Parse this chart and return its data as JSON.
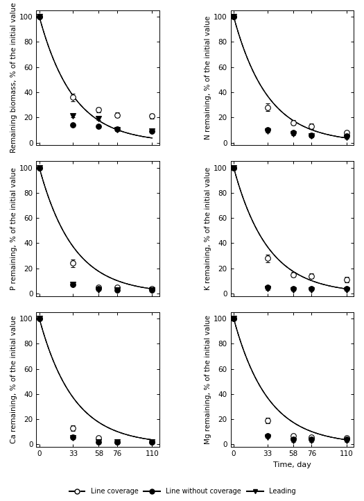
{
  "days": [
    0,
    33,
    58,
    76,
    110
  ],
  "subplots": [
    {
      "ylabel": "Remaining biomass, % of the initial value",
      "vprws": {
        "data": [
          100,
          36,
          26,
          22,
          21
        ],
        "err": [
          0,
          3,
          2,
          2,
          2
        ]
      },
      "vprs": {
        "data": [
          100,
          14,
          13,
          11,
          9
        ],
        "err": [
          0,
          1,
          1,
          1,
          1
        ]
      },
      "br": {
        "data": [
          100,
          21,
          19,
          10,
          9
        ],
        "err": [
          0,
          1,
          1,
          1,
          1
        ]
      }
    },
    {
      "ylabel": "N remaining, % of the initial value",
      "vprws": {
        "data": [
          100,
          28,
          16,
          13,
          8
        ],
        "err": [
          0,
          3,
          2,
          2,
          1
        ]
      },
      "vprs": {
        "data": [
          100,
          10,
          8,
          6,
          5
        ],
        "err": [
          0,
          1,
          1,
          1,
          1
        ]
      },
      "br": {
        "data": [
          100,
          9,
          7,
          5,
          4
        ],
        "err": [
          0,
          1,
          1,
          1,
          1
        ]
      }
    },
    {
      "ylabel": "P remaining, % of the initial value",
      "vprws": {
        "data": [
          100,
          24,
          5,
          5,
          4
        ],
        "err": [
          0,
          3,
          1,
          1,
          1
        ]
      },
      "vprs": {
        "data": [
          100,
          7,
          4,
          3,
          3
        ],
        "err": [
          0,
          1,
          1,
          1,
          1
        ]
      },
      "br": {
        "data": [
          100,
          7,
          3,
          3,
          3
        ],
        "err": [
          0,
          1,
          1,
          1,
          1
        ]
      }
    },
    {
      "ylabel": "K remaining, % of the initial value",
      "vprws": {
        "data": [
          100,
          28,
          15,
          14,
          11
        ],
        "err": [
          0,
          3,
          2,
          2,
          2
        ]
      },
      "vprs": {
        "data": [
          100,
          5,
          4,
          4,
          4
        ],
        "err": [
          0,
          1,
          1,
          1,
          1
        ]
      },
      "br": {
        "data": [
          100,
          4,
          3,
          3,
          3
        ],
        "err": [
          0,
          1,
          1,
          1,
          1
        ]
      }
    },
    {
      "ylabel": "Ca remaining, % of the initial value",
      "vprws": {
        "data": [
          100,
          13,
          5,
          2,
          2
        ],
        "err": [
          0,
          2,
          1,
          1,
          1
        ]
      },
      "vprs": {
        "data": [
          100,
          6,
          2,
          2,
          2
        ],
        "err": [
          0,
          1,
          1,
          1,
          1
        ]
      },
      "br": {
        "data": [
          100,
          5,
          2,
          2,
          2
        ],
        "err": [
          0,
          1,
          1,
          1,
          1
        ]
      }
    },
    {
      "ylabel": "Mg remaining, % of the initial value",
      "vprws": {
        "data": [
          100,
          19,
          7,
          6,
          5
        ],
        "err": [
          0,
          2,
          1,
          1,
          1
        ]
      },
      "vprs": {
        "data": [
          100,
          7,
          4,
          4,
          4
        ],
        "err": [
          0,
          1,
          1,
          1,
          1
        ]
      },
      "br": {
        "data": [
          100,
          6,
          3,
          3,
          3
        ],
        "err": [
          0,
          1,
          1,
          1,
          1
        ]
      }
    }
  ],
  "legend_labels": [
    "Line coverage",
    "Line without coverage",
    "Leading"
  ],
  "xticks": [
    0,
    33,
    58,
    76,
    110
  ],
  "xlim": [
    -3,
    117
  ],
  "ylim": [
    -2,
    105
  ],
  "yticks": [
    0,
    20,
    40,
    60,
    80,
    100
  ],
  "xlabel": "Time, day",
  "bg_color": "#ffffff"
}
